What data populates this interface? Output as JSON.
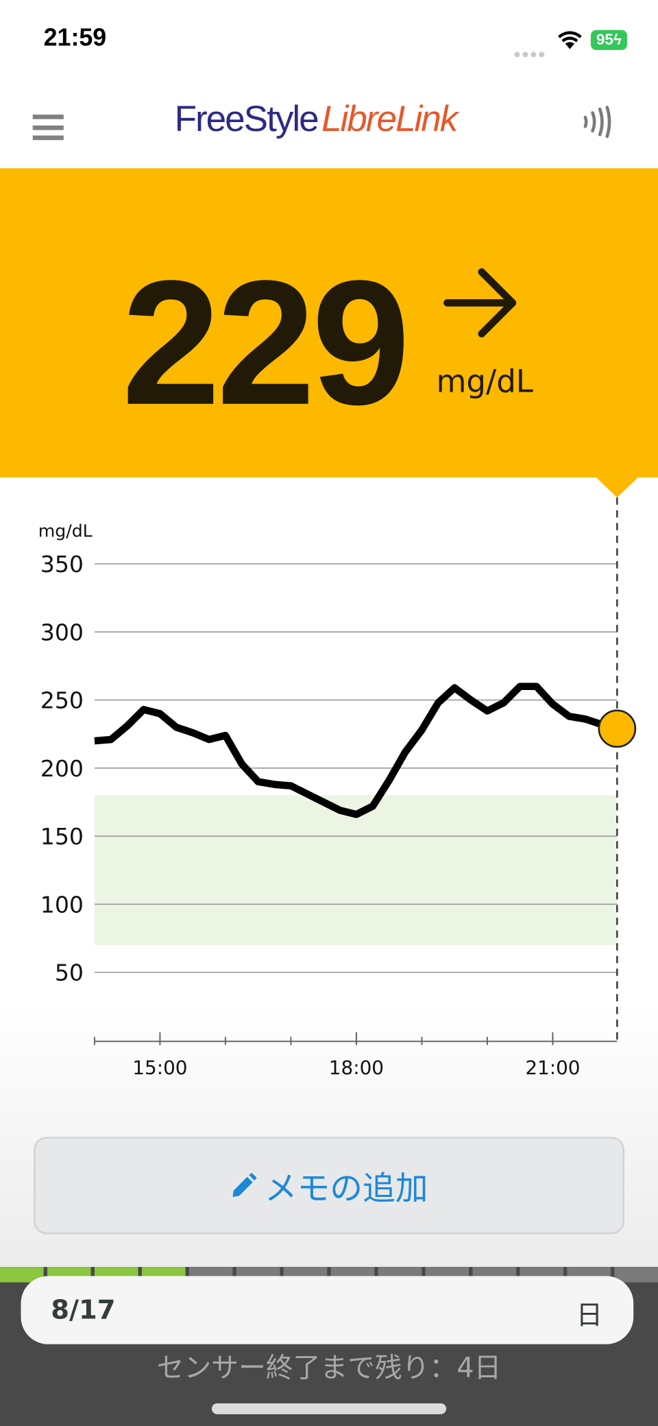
{
  "status_bar": {
    "time": "21:59",
    "battery": "95",
    "battery_charging": true,
    "wifi_icon": "wifi-icon"
  },
  "header": {
    "logo_part1": "FreeStyle",
    "logo_part2": "LibreLink",
    "menu_icon": "hamburger-menu-icon",
    "nfc_icon": "nfc-scan-icon",
    "logo_colors": [
      "#2b2a86",
      "#e8582a"
    ]
  },
  "reading": {
    "value": "229",
    "unit": "mg/dL",
    "trend": "steady",
    "trend_icon": "arrow-right-icon",
    "background_color": "#fdb900"
  },
  "chart_data": {
    "type": "line",
    "ylabel": "mg/dL",
    "ylim": [
      0,
      350
    ],
    "yticks": [
      50,
      100,
      150,
      200,
      250,
      300,
      350
    ],
    "xticks": [
      "15:00",
      "18:00",
      "21:00"
    ],
    "xrange": [
      "14:00",
      "21:59"
    ],
    "target_range": [
      70,
      180
    ],
    "target_color": "#ecf5e4",
    "grid": true,
    "x": [
      "14:00",
      "14:15",
      "14:30",
      "14:45",
      "15:00",
      "15:15",
      "15:30",
      "15:45",
      "16:00",
      "16:15",
      "16:30",
      "16:45",
      "17:00",
      "17:15",
      "17:30",
      "17:45",
      "18:00",
      "18:15",
      "18:30",
      "18:45",
      "19:00",
      "19:15",
      "19:30",
      "19:45",
      "20:00",
      "20:15",
      "20:30",
      "20:45",
      "21:00",
      "21:15",
      "21:30",
      "21:45",
      "21:59"
    ],
    "values": [
      220,
      221,
      231,
      243,
      240,
      230,
      226,
      221,
      224,
      203,
      190,
      188,
      187,
      181,
      175,
      169,
      166,
      172,
      191,
      212,
      228,
      248,
      259,
      250,
      242,
      248,
      260,
      260,
      247,
      238,
      236,
      232,
      229
    ],
    "current": {
      "time": "21:59",
      "value": 229
    }
  },
  "memo_button": {
    "label": "メモの追加",
    "icon": "pencil-icon"
  },
  "sensor": {
    "remaining_text": "センサー終了まで残り：4日",
    "segments_total": 14,
    "segments_green": 4,
    "green_color": "#8cc63f"
  },
  "date_bar": {
    "date": "8/17",
    "day": "日"
  }
}
